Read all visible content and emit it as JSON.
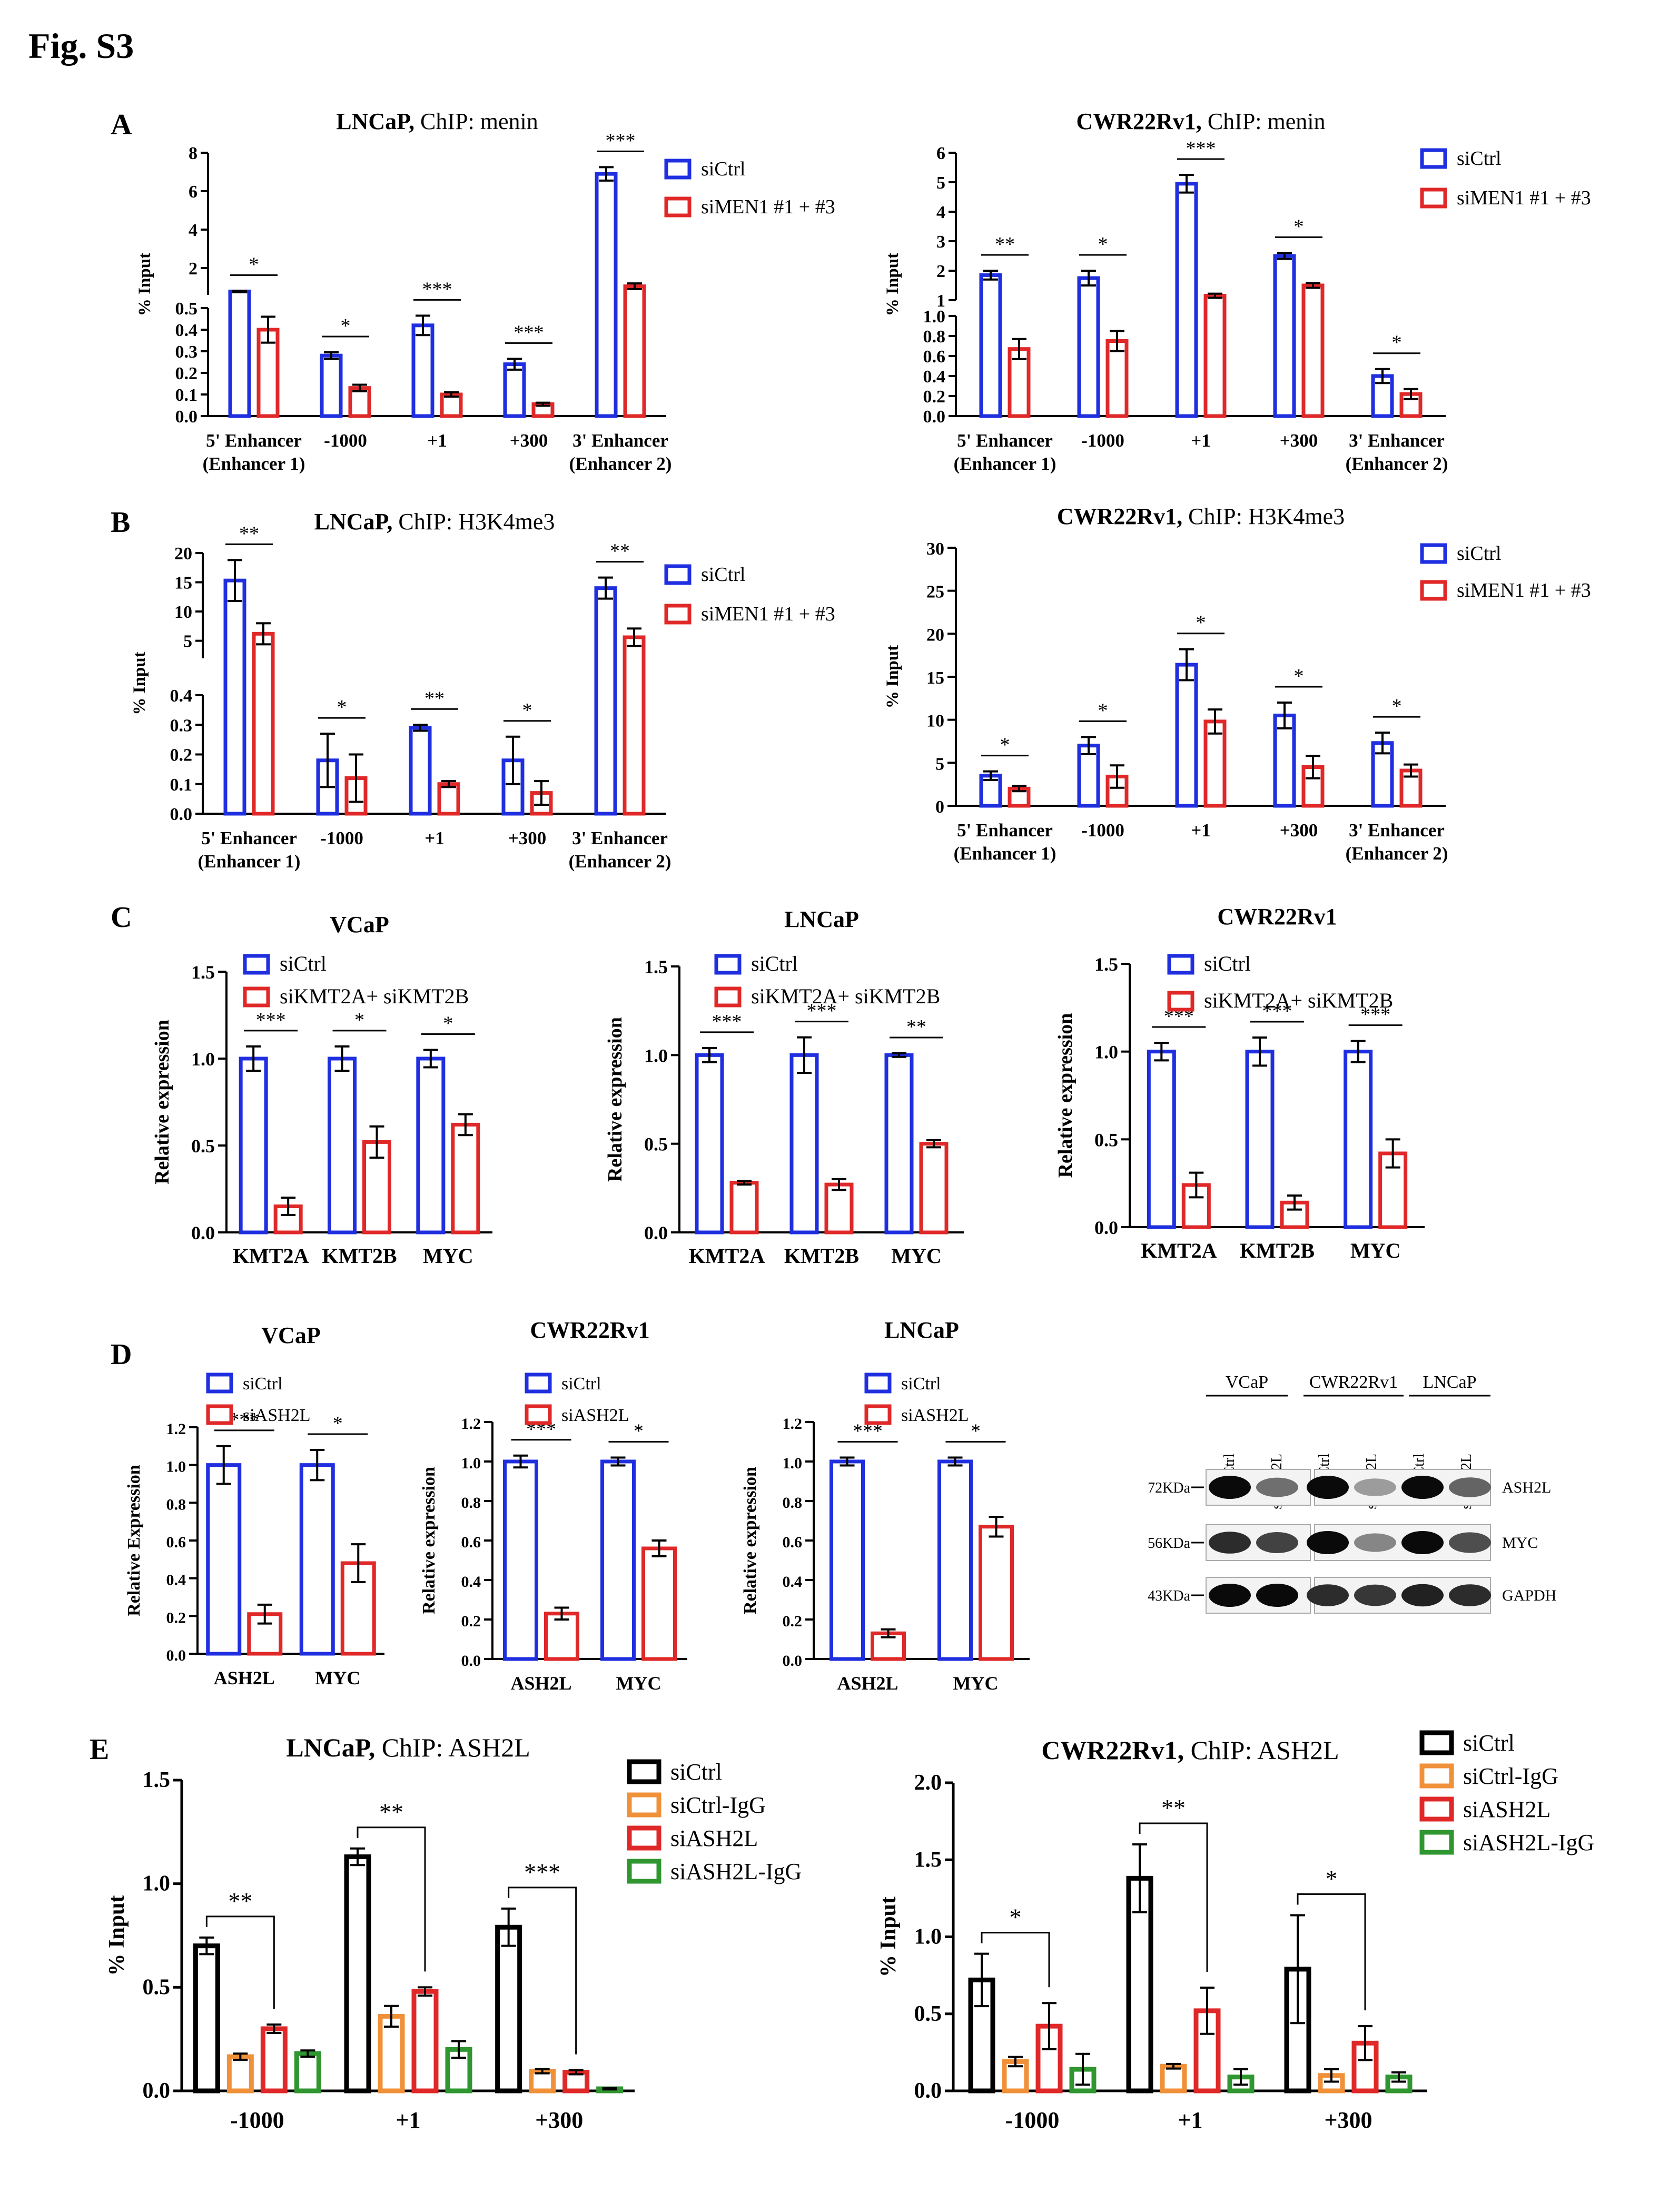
{
  "figure_label": "Fig. S3",
  "colors": {
    "siCtrl": "#1f2fe0",
    "treated": "#e02828",
    "siCtrlIgG": "#f0913a",
    "siASH2LIgG": "#2f9630",
    "black": "#000000"
  },
  "panels": {
    "A": "A",
    "B": "B",
    "C": "C",
    "D": "D",
    "E": "E"
  },
  "blot": {
    "cell_lines": [
      "VCaP",
      "CWR22Rv1",
      "LNCaP"
    ],
    "lanes": [
      "siCtrl",
      "siASH2L",
      "siCtrl",
      "siASH2L",
      "siCtrl",
      "siASH2L"
    ],
    "markers": [
      "72KDa",
      "56KDa",
      "43KDa"
    ],
    "proteins": [
      "ASH2L",
      "MYC",
      "GAPDH"
    ],
    "band_intensity": [
      [
        1.0,
        0.55,
        1.0,
        0.35,
        1.0,
        0.6
      ],
      [
        0.85,
        0.75,
        1.0,
        0.45,
        1.0,
        0.7
      ],
      [
        1.0,
        1.0,
        0.85,
        0.8,
        0.9,
        0.85
      ]
    ]
  },
  "chart_data": [
    {
      "id": "A1",
      "type": "bar",
      "title_bold": "LNCaP,",
      "title_rest": " ChIP: menin",
      "ylabel": "% Input",
      "categories": [
        [
          "5' Enhancer",
          "(Enhancer 1)"
        ],
        [
          "-1000"
        ],
        [
          "+1"
        ],
        [
          "+300"
        ],
        [
          "3' Enhancer",
          "(Enhancer 2)"
        ]
      ],
      "series": [
        {
          "name": "siCtrl",
          "values": [
            0.78,
            0.28,
            0.42,
            0.24,
            6.9
          ],
          "errors": [
            0.03,
            0.015,
            0.045,
            0.025,
            0.35
          ]
        },
        {
          "name": "siMEN1 #1 + #3",
          "values": [
            0.4,
            0.13,
            0.1,
            0.055,
            1.05
          ],
          "errors": [
            0.06,
            0.015,
            0.01,
            0.007,
            0.15
          ]
        }
      ],
      "sig": [
        "*",
        "*",
        "***",
        "***",
        "***"
      ],
      "axis_break": {
        "lower": [
          0,
          0.5
        ],
        "lower_ticks": [
          0,
          0.1,
          0.2,
          0.3,
          0.4,
          0.5
        ],
        "upper": [
          0.6,
          8
        ],
        "upper_ticks": [
          2,
          4,
          6,
          8
        ]
      }
    },
    {
      "id": "A2",
      "type": "bar",
      "title_bold": "CWR22Rv1,",
      "title_rest": " ChIP: menin",
      "ylabel": "% Input",
      "categories": [
        [
          "5' Enhancer",
          "(Enhancer 1)"
        ],
        [
          "-1000"
        ],
        [
          "+1"
        ],
        [
          "+300"
        ],
        [
          "3' Enhancer",
          "(Enhancer 2)"
        ]
      ],
      "series": [
        {
          "name": "siCtrl",
          "values": [
            1.85,
            1.75,
            4.95,
            2.5,
            0.4
          ],
          "errors": [
            0.15,
            0.25,
            0.3,
            0.1,
            0.07
          ]
        },
        {
          "name": "siMEN1 #1 + #3",
          "values": [
            0.67,
            0.75,
            1.15,
            1.5,
            0.22
          ],
          "errors": [
            0.1,
            0.1,
            0.07,
            0.08,
            0.05
          ]
        }
      ],
      "sig": [
        "**",
        "*",
        "***",
        "*",
        "*"
      ],
      "axis_break": {
        "lower": [
          0,
          1.0
        ],
        "lower_ticks": [
          0,
          0.2,
          0.4,
          0.6,
          0.8,
          1.0
        ],
        "upper": [
          1,
          6
        ],
        "upper_ticks": [
          1,
          2,
          3,
          4,
          5,
          6
        ]
      }
    },
    {
      "id": "B1",
      "type": "bar",
      "title_bold": "LNCaP,",
      "title_rest": " ChIP: H3K4me3",
      "ylabel": "% Input",
      "categories": [
        [
          "5' Enhancer",
          "(Enhancer 1)"
        ],
        [
          "-1000"
        ],
        [
          "+1"
        ],
        [
          "+300"
        ],
        [
          "3' Enhancer",
          "(Enhancer 2)"
        ]
      ],
      "series": [
        {
          "name": "siCtrl",
          "values": [
            15.3,
            0.18,
            0.29,
            0.18,
            14.0
          ],
          "errors": [
            3.5,
            0.09,
            0.01,
            0.08,
            1.8
          ]
        },
        {
          "name": "siMEN1 #1 + #3",
          "values": [
            6.2,
            0.12,
            0.1,
            0.07,
            5.6
          ],
          "errors": [
            1.8,
            0.08,
            0.01,
            0.04,
            1.5
          ]
        }
      ],
      "sig": [
        "**",
        "*",
        "**",
        "*",
        "**"
      ],
      "axis_break": {
        "lower": [
          0,
          0.4
        ],
        "lower_ticks": [
          0,
          0.1,
          0.2,
          0.3,
          0.4
        ],
        "upper": [
          2,
          20
        ],
        "upper_ticks": [
          5,
          10,
          15,
          20
        ]
      }
    },
    {
      "id": "B2",
      "type": "bar",
      "title_bold": "CWR22Rv1,",
      "title_rest": " ChIP: H3K4me3",
      "ylabel": "% Input",
      "categories": [
        [
          "5' Enhancer",
          "(Enhancer 1)"
        ],
        [
          "-1000"
        ],
        [
          "+1"
        ],
        [
          "+300"
        ],
        [
          "3' Enhancer",
          "(Enhancer 2)"
        ]
      ],
      "series": [
        {
          "name": "siCtrl",
          "values": [
            3.5,
            7.0,
            16.4,
            10.5,
            7.3
          ],
          "errors": [
            0.5,
            1.0,
            1.8,
            1.5,
            1.2
          ]
        },
        {
          "name": "siMEN1 #1 + #3",
          "values": [
            2.0,
            3.4,
            9.8,
            4.5,
            4.1
          ],
          "errors": [
            0.3,
            1.3,
            1.4,
            1.3,
            0.7
          ]
        }
      ],
      "sig": [
        "*",
        "*",
        "*",
        "*",
        "*"
      ],
      "ylim": [
        0,
        30
      ],
      "ticks": [
        0,
        5,
        10,
        15,
        20,
        25,
        30
      ]
    },
    {
      "id": "C1",
      "type": "bar",
      "title_bold": "VCaP",
      "title_rest": "",
      "ylabel": "Relative expression",
      "categories": [
        [
          "KMT2A"
        ],
        [
          "KMT2B"
        ],
        [
          "MYC"
        ]
      ],
      "series": [
        {
          "name": "siCtrl",
          "values": [
            1.0,
            1.0,
            1.0
          ],
          "errors": [
            0.07,
            0.07,
            0.05
          ]
        },
        {
          "name": "siKMT2A+ siKMT2B",
          "values": [
            0.15,
            0.52,
            0.62
          ],
          "errors": [
            0.05,
            0.09,
            0.06
          ]
        }
      ],
      "sig": [
        "***",
        "*",
        "*"
      ],
      "ylim": [
        0,
        1.5
      ],
      "ticks": [
        0,
        0.5,
        1.0,
        1.5
      ]
    },
    {
      "id": "C2",
      "type": "bar",
      "title_bold": "LNCaP",
      "title_rest": "",
      "ylabel": "Relative expression",
      "categories": [
        [
          "KMT2A"
        ],
        [
          "KMT2B"
        ],
        [
          "MYC"
        ]
      ],
      "series": [
        {
          "name": "siCtrl",
          "values": [
            1.0,
            1.0,
            1.0
          ],
          "errors": [
            0.04,
            0.1,
            0.01
          ]
        },
        {
          "name": "siKMT2A+ siKMT2B",
          "values": [
            0.28,
            0.27,
            0.5
          ],
          "errors": [
            0.01,
            0.03,
            0.02
          ]
        }
      ],
      "sig": [
        "***",
        "***",
        "**"
      ],
      "ylim": [
        0,
        1.5
      ],
      "ticks": [
        0,
        0.5,
        1.0,
        1.5
      ]
    },
    {
      "id": "C3",
      "type": "bar",
      "title_bold": "CWR22Rv1",
      "title_rest": "",
      "ylabel": "Relative expression",
      "categories": [
        [
          "KMT2A"
        ],
        [
          "KMT2B"
        ],
        [
          "MYC"
        ]
      ],
      "series": [
        {
          "name": "siCtrl",
          "values": [
            1.0,
            1.0,
            1.0
          ],
          "errors": [
            0.05,
            0.08,
            0.06
          ]
        },
        {
          "name": "siKMT2A+ siKMT2B",
          "values": [
            0.24,
            0.14,
            0.42
          ],
          "errors": [
            0.07,
            0.04,
            0.08
          ]
        }
      ],
      "sig": [
        "***",
        "***",
        "***"
      ],
      "ylim": [
        0,
        1.5
      ],
      "ticks": [
        0,
        0.5,
        1.0,
        1.5
      ]
    },
    {
      "id": "D1",
      "type": "bar",
      "title_bold": "VCaP",
      "title_rest": "",
      "ylabel": "Relative Expression",
      "categories": [
        [
          "ASH2L"
        ],
        [
          "MYC"
        ]
      ],
      "series": [
        {
          "name": "siCtrl",
          "values": [
            1.0,
            1.0
          ],
          "errors": [
            0.1,
            0.08
          ]
        },
        {
          "name": "siASH2L",
          "values": [
            0.21,
            0.48
          ],
          "errors": [
            0.05,
            0.1
          ]
        }
      ],
      "sig": [
        "***",
        "*"
      ],
      "ylim": [
        0,
        1.2
      ],
      "ticks": [
        0,
        0.2,
        0.4,
        0.6,
        0.8,
        1.0,
        1.2
      ]
    },
    {
      "id": "D2",
      "type": "bar",
      "title_bold": "CWR22Rv1",
      "title_rest": "",
      "ylabel": "Relative expression",
      "categories": [
        [
          "ASH2L"
        ],
        [
          "MYC"
        ]
      ],
      "series": [
        {
          "name": "siCtrl",
          "values": [
            1.0,
            1.0
          ],
          "errors": [
            0.03,
            0.02
          ]
        },
        {
          "name": "siASH2L",
          "values": [
            0.23,
            0.56
          ],
          "errors": [
            0.03,
            0.04
          ]
        }
      ],
      "sig": [
        "***",
        "*"
      ],
      "ylim": [
        0,
        1.2
      ],
      "ticks": [
        0,
        0.2,
        0.4,
        0.6,
        0.8,
        1.0,
        1.2
      ]
    },
    {
      "id": "D3",
      "type": "bar",
      "title_bold": "LNCaP",
      "title_rest": "",
      "ylabel": "Relative expression",
      "categories": [
        [
          "ASH2L"
        ],
        [
          "MYC"
        ]
      ],
      "series": [
        {
          "name": "siCtrl",
          "values": [
            1.0,
            1.0
          ],
          "errors": [
            0.02,
            0.02
          ]
        },
        {
          "name": "siASH2L",
          "values": [
            0.13,
            0.67
          ],
          "errors": [
            0.02,
            0.05
          ]
        }
      ],
      "sig": [
        "***",
        "*"
      ],
      "ylim": [
        0,
        1.2
      ],
      "ticks": [
        0,
        0.2,
        0.4,
        0.6,
        0.8,
        1.0,
        1.2
      ]
    },
    {
      "id": "E1",
      "type": "bar",
      "title_bold": "LNCaP,",
      "title_rest": " ChIP: ASH2L",
      "ylabel": "% Input",
      "categories": [
        [
          "-1000"
        ],
        [
          "+1"
        ],
        [
          "+300"
        ]
      ],
      "series": [
        {
          "name": "siCtrl",
          "values": [
            0.7,
            1.13,
            0.79
          ],
          "errors": [
            0.04,
            0.04,
            0.09
          ]
        },
        {
          "name": "siCtrl-IgG",
          "values": [
            0.165,
            0.36,
            0.095
          ],
          "errors": [
            0.015,
            0.05,
            0.01
          ]
        },
        {
          "name": "siASH2L",
          "values": [
            0.3,
            0.48,
            0.09
          ],
          "errors": [
            0.02,
            0.02,
            0.01
          ]
        },
        {
          "name": "siASH2L-IgG",
          "values": [
            0.18,
            0.2,
            0.01
          ],
          "errors": [
            0.015,
            0.04,
            0.003
          ]
        }
      ],
      "sig": [
        "**",
        "**",
        "***"
      ],
      "ylim": [
        0,
        1.5
      ],
      "ticks": [
        0,
        0.5,
        1.0,
        1.5
      ]
    },
    {
      "id": "E2",
      "type": "bar",
      "title_bold": "CWR22Rv1,",
      "title_rest": " ChIP: ASH2L",
      "ylabel": "% Input",
      "categories": [
        [
          "-1000"
        ],
        [
          "+1"
        ],
        [
          "+300"
        ]
      ],
      "series": [
        {
          "name": "siCtrl",
          "values": [
            0.72,
            1.38,
            0.79
          ],
          "errors": [
            0.17,
            0.22,
            0.35
          ]
        },
        {
          "name": "siCtrl-IgG",
          "values": [
            0.19,
            0.16,
            0.1
          ],
          "errors": [
            0.03,
            0.015,
            0.04
          ]
        },
        {
          "name": "siASH2L",
          "values": [
            0.42,
            0.52,
            0.31
          ],
          "errors": [
            0.15,
            0.15,
            0.11
          ]
        },
        {
          "name": "siASH2L-IgG",
          "values": [
            0.14,
            0.09,
            0.09
          ],
          "errors": [
            0.1,
            0.05,
            0.03
          ]
        }
      ],
      "sig": [
        "*",
        "**",
        "*"
      ],
      "ylim": [
        0,
        2.0
      ],
      "ticks": [
        0,
        0.5,
        1.0,
        1.5,
        2.0
      ]
    }
  ]
}
